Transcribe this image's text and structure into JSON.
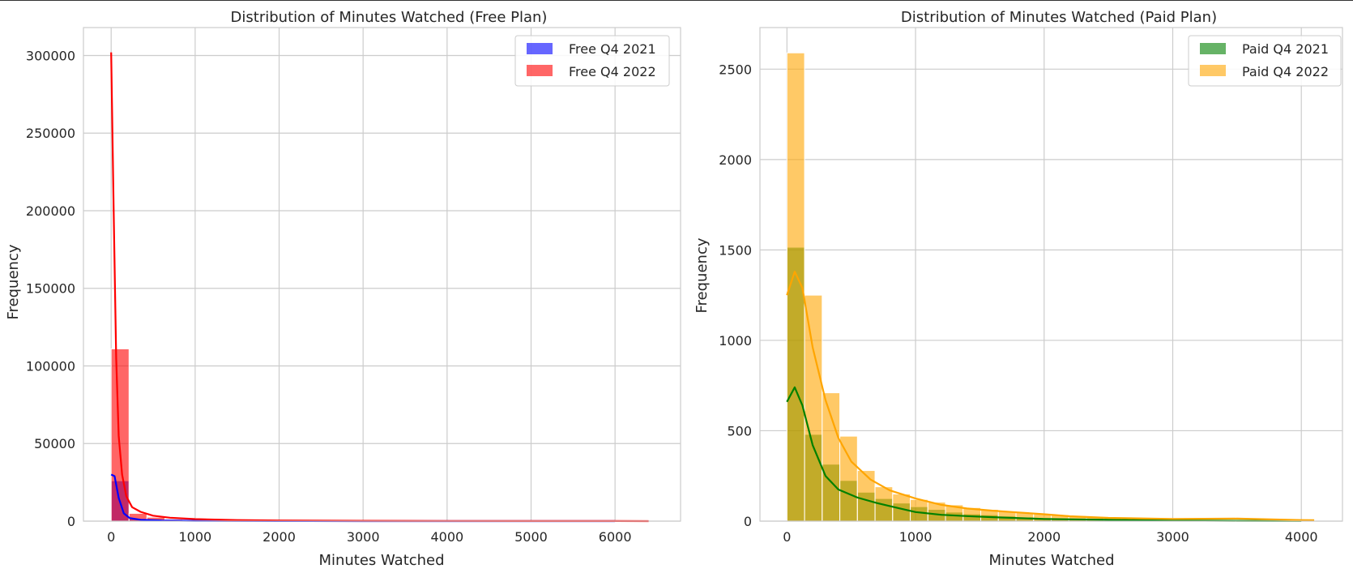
{
  "chart_data": [
    {
      "type": "bar",
      "title": "Distribution of Minutes Watched (Free Plan)",
      "xlabel": "Minutes Watched",
      "ylabel": "Frequency",
      "xlim": [
        -330,
        6780
      ],
      "ylim": [
        0,
        318000
      ],
      "xticks": [
        0,
        1000,
        2000,
        3000,
        4000,
        5000,
        6000
      ],
      "xtick_labels": [
        "0",
        "1000",
        "2000",
        "3000",
        "4000",
        "5000",
        "6000"
      ],
      "yticks": [
        0,
        50000,
        100000,
        150000,
        200000,
        250000,
        300000
      ],
      "ytick_labels": [
        "0",
        "50000",
        "100000",
        "150000",
        "200000",
        "250000",
        "300000"
      ],
      "grid": true,
      "legend_position": "top-right",
      "series": [
        {
          "name": "Free Q4 2021",
          "color": "#0000ff",
          "bin_width": 213,
          "bins_start": 0,
          "values": [
            26000,
            1500,
            600,
            300,
            200,
            120,
            80,
            60,
            40,
            30,
            20,
            15,
            10,
            8,
            6,
            5,
            4,
            3,
            2,
            2,
            1,
            1,
            1,
            1,
            0,
            0,
            0,
            0,
            0,
            0
          ],
          "kde": [
            [
              0,
              30000
            ],
            [
              40,
              29000
            ],
            [
              90,
              15000
            ],
            [
              150,
              5000
            ],
            [
              220,
              2000
            ],
            [
              350,
              900
            ],
            [
              600,
              400
            ],
            [
              1000,
              200
            ],
            [
              2000,
              50
            ],
            [
              3000,
              10
            ],
            [
              5000,
              0
            ],
            [
              6000,
              0
            ]
          ]
        },
        {
          "name": "Free Q4 2022",
          "color": "#ff0000",
          "bin_width": 213,
          "bins_start": 0,
          "values": [
            111000,
            5000,
            2500,
            1200,
            800,
            500,
            350,
            250,
            180,
            130,
            100,
            80,
            60,
            50,
            40,
            30,
            25,
            20,
            15,
            12,
            10,
            8,
            6,
            5,
            4,
            3,
            2,
            2,
            1,
            1
          ],
          "kde": [
            [
              0,
              302000
            ],
            [
              30,
              200000
            ],
            [
              60,
              105000
            ],
            [
              90,
              55000
            ],
            [
              130,
              30000
            ],
            [
              180,
              16000
            ],
            [
              250,
              9000
            ],
            [
              350,
              6000
            ],
            [
              500,
              3500
            ],
            [
              700,
              2200
            ],
            [
              1000,
              1300
            ],
            [
              1500,
              700
            ],
            [
              2000,
              400
            ],
            [
              3000,
              200
            ],
            [
              4000,
              100
            ],
            [
              5000,
              60
            ],
            [
              6000,
              30
            ],
            [
              6400,
              20
            ]
          ]
        }
      ]
    },
    {
      "type": "bar",
      "title": "Distribution of Minutes Watched (Paid Plan)",
      "xlabel": "Minutes Watched",
      "ylabel": "Frequency",
      "xlim": [
        -210,
        4320
      ],
      "ylim": [
        0,
        2730
      ],
      "xticks": [
        0,
        1000,
        2000,
        3000,
        4000
      ],
      "xtick_labels": [
        "0",
        "1000",
        "2000",
        "3000",
        "4000"
      ],
      "yticks": [
        0,
        500,
        1000,
        1500,
        2000,
        2500
      ],
      "ytick_labels": [
        "0",
        "500",
        "1000",
        "1500",
        "2000",
        "2500"
      ],
      "grid": true,
      "legend_position": "top-right",
      "series": [
        {
          "name": "Paid Q4 2021",
          "color": "#008000",
          "bin_width": 137,
          "bins_start": 0,
          "values": [
            1515,
            480,
            315,
            225,
            160,
            125,
            100,
            80,
            65,
            50,
            40,
            35,
            28,
            22,
            18,
            14,
            10,
            8,
            7,
            6,
            5,
            4,
            3,
            3,
            2,
            2,
            1,
            1,
            1,
            1
          ],
          "kde": [
            [
              0,
              660
            ],
            [
              60,
              740
            ],
            [
              120,
              640
            ],
            [
              200,
              420
            ],
            [
              300,
              250
            ],
            [
              400,
              175
            ],
            [
              550,
              130
            ],
            [
              700,
              100
            ],
            [
              850,
              75
            ],
            [
              1000,
              50
            ],
            [
              1200,
              35
            ],
            [
              1400,
              28
            ],
            [
              1600,
              22
            ],
            [
              2000,
              12
            ],
            [
              2500,
              7
            ],
            [
              3000,
              4
            ],
            [
              3500,
              2
            ],
            [
              4000,
              1
            ]
          ]
        },
        {
          "name": "Paid Q4 2022",
          "color": "#ffa500",
          "bin_width": 137,
          "bins_start": 0,
          "values": [
            2590,
            1250,
            710,
            470,
            280,
            190,
            150,
            120,
            105,
            90,
            75,
            65,
            55,
            48,
            40,
            35,
            30,
            25,
            20,
            16,
            13,
            10,
            9,
            8,
            7,
            6,
            6,
            6,
            5,
            4
          ],
          "kde": [
            [
              0,
              1250
            ],
            [
              60,
              1380
            ],
            [
              120,
              1290
            ],
            [
              200,
              960
            ],
            [
              300,
              670
            ],
            [
              400,
              460
            ],
            [
              500,
              330
            ],
            [
              650,
              230
            ],
            [
              800,
              170
            ],
            [
              1000,
              125
            ],
            [
              1200,
              90
            ],
            [
              1400,
              70
            ],
            [
              1600,
              58
            ],
            [
              1800,
              48
            ],
            [
              2000,
              38
            ],
            [
              2200,
              27
            ],
            [
              2500,
              18
            ],
            [
              3000,
              12
            ],
            [
              3500,
              14
            ],
            [
              4000,
              6
            ],
            [
              4100,
              5
            ]
          ]
        }
      ]
    }
  ]
}
